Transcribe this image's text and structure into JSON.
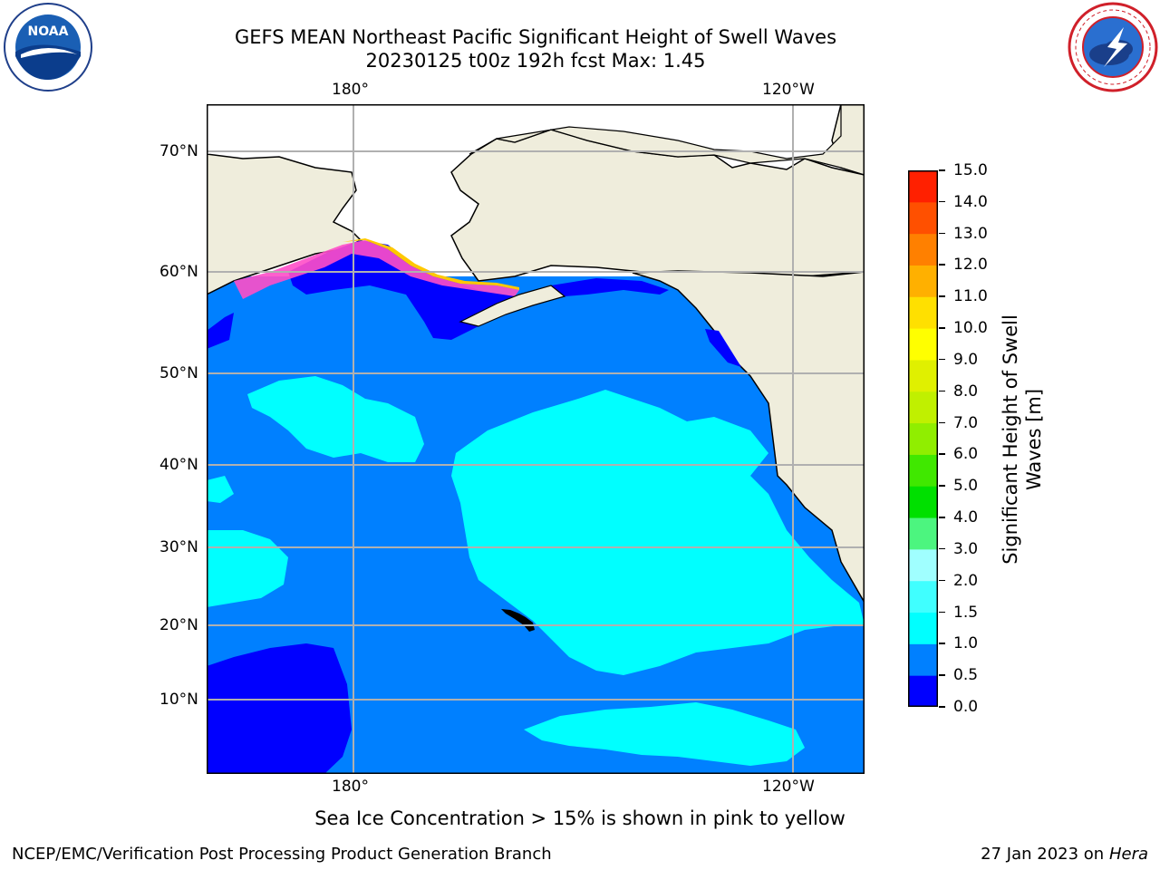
{
  "title_line1": "GEFS MEAN Northeast Pacific Significant Height of Swell Waves",
  "title_line2": "20230125 t00z 192h fcst   Max: 1.45",
  "logo_left_text": "NOAA",
  "logo_left_ring": "NATIONAL OCEANIC AND ATMOSPHERIC ADMINISTRATION · U.S. DEPARTMENT OF COMMERCE",
  "logo_right_ring": "NATIONAL WEATHER SERVICE",
  "map": {
    "lon_labels_top": [
      "180°",
      "120°W"
    ],
    "lon_labels_bottom": [
      "180°",
      "120°W"
    ],
    "lat_labels": [
      "70°N",
      "60°N",
      "50°N",
      "40°N",
      "30°N",
      "20°N",
      "10°N"
    ],
    "colors": {
      "land": "#efeddc",
      "ice_zone": "#ffffff",
      "sea_1_15": "#00ffff",
      "sea_05_1": "#0080ff",
      "sea_0_05": "#0000ff",
      "sea_ice_pink": "#ff4ec8",
      "sea_ice_yellow": "#ffc800",
      "grid": "#b0b0b0"
    }
  },
  "colorbar": {
    "label_line1": "Significant Height of Swell",
    "label_line2": "Waves [m]",
    "ticks": [
      "0.0",
      "0.5",
      "1.0",
      "1.5",
      "2.0",
      "3.0",
      "4.0",
      "5.0",
      "6.0",
      "7.0",
      "8.0",
      "9.0",
      "10.0",
      "11.0",
      "12.0",
      "13.0",
      "14.0",
      "15.0"
    ],
    "colors": [
      "#0000ff",
      "#0080ff",
      "#00ffff",
      "#40ffff",
      "#a0ffff",
      "#4cf57f",
      "#00e000",
      "#40e800",
      "#90ee00",
      "#c0f000",
      "#e0f000",
      "#ffff00",
      "#ffe000",
      "#ffb000",
      "#ff8000",
      "#ff5000",
      "#ff2000"
    ]
  },
  "footer_note": "Sea Ice Concentration > 15% is shown in pink to yellow",
  "footer_left": "NCEP/EMC/Verification Post Processing Product Generation Branch",
  "footer_right_date": "27 Jan 2023 on",
  "footer_right_host": "Hera"
}
